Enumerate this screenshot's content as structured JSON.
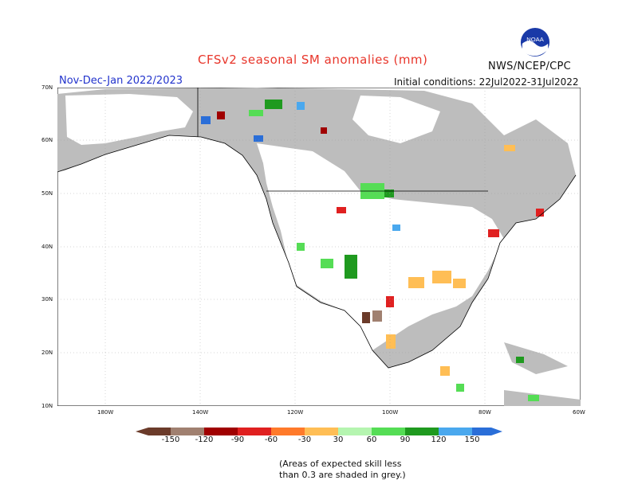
{
  "title": "CFSv2 seasonal SM anomalies (mm)",
  "credit": "NWS/NCEP/CPC",
  "logo_text": "NOAA",
  "season": "Nov-Dec-Jan 2022/2023",
  "initial_conditions": "Initial conditions: 22Jul2022-31Jul2022",
  "lat_labels": [
    "70N",
    "60N",
    "50N",
    "40N",
    "30N",
    "20N",
    "10N"
  ],
  "lon_labels": [
    "180W",
    "140W",
    "120W",
    "100W",
    "80W",
    "60W"
  ],
  "colorbar": {
    "labels": [
      "-150",
      "-120",
      "-90",
      "-60",
      "-30",
      "30",
      "60",
      "90",
      "120",
      "150"
    ],
    "colors": [
      "#6b3b2a",
      "#a08070",
      "#a00000",
      "#e02020",
      "#ff7a2a",
      "#ffbe55",
      "#ffffff",
      "#b5f5b0",
      "#55dd55",
      "#1f9a1f",
      "#1f8a1f",
      "#4aa8ee",
      "#2a6ed8"
    ]
  },
  "map_colors": {
    "ocean": "#ffffff",
    "low_skill": "#bdbdbd",
    "neutral": "#ffffff"
  },
  "note_line1": "(Areas of expected skill less",
  "note_line2": "than 0.3 are shaded in grey.)"
}
